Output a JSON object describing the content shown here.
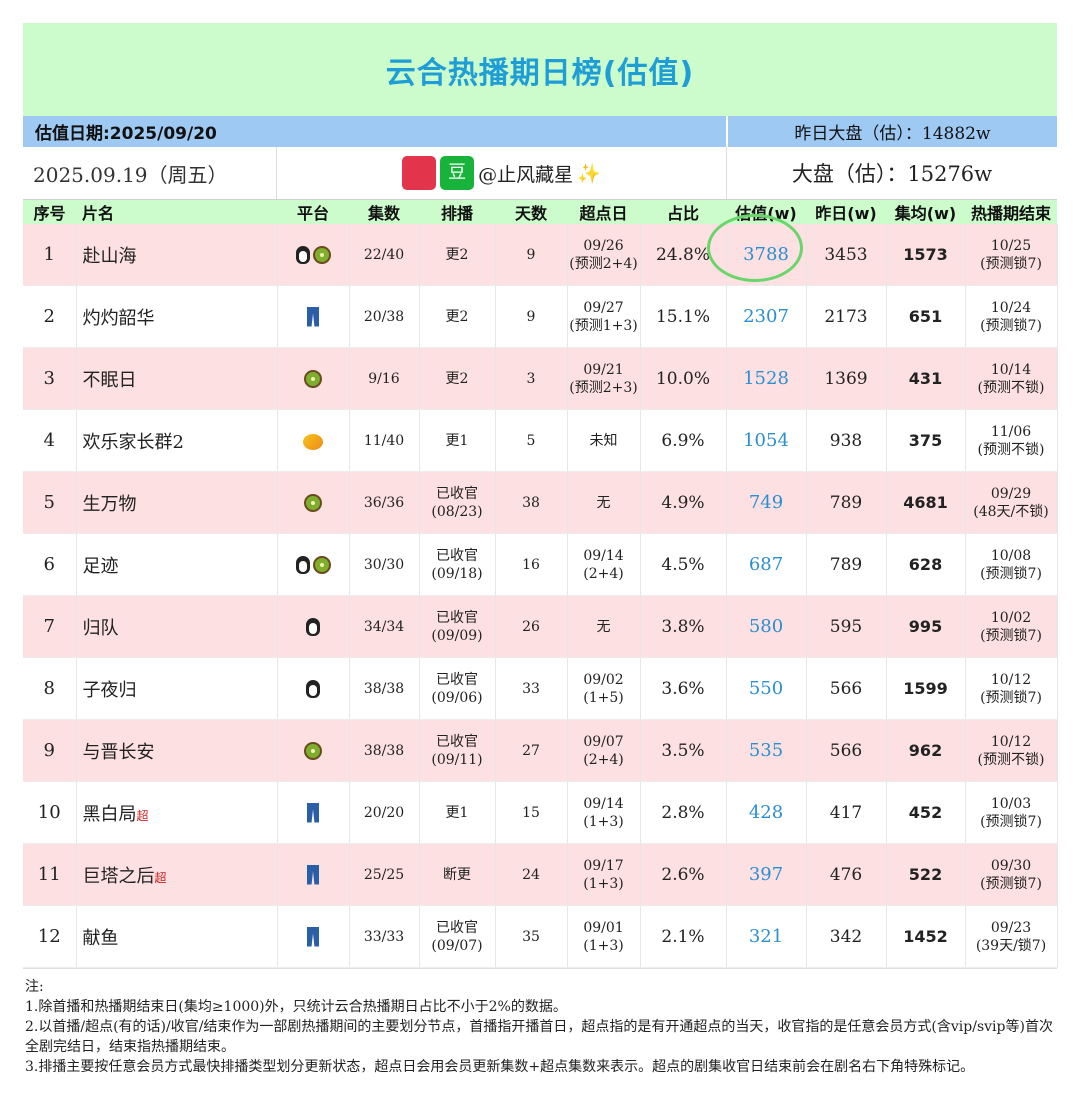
{
  "title": "云合热播期日榜(估值)",
  "valuation_date": "估值日期:2025/09/20",
  "yesterday_market": "昨日大盘（估）：14882w",
  "broadcast_date": "2025.09.19（周五）",
  "source_badge_text": "豆",
  "source_handle": "@止风藏星",
  "sparkle": "✨",
  "market_estimate": "大盘（估）：15276w",
  "headers": [
    "序号",
    "片名",
    "平台",
    "集数",
    "排播",
    "天数",
    "超点日",
    "占比",
    "估值(w)",
    "昨日(w)",
    "集均(w)",
    "热播期结束"
  ],
  "rows": [
    {
      "rank": "1",
      "name": "赴山海",
      "super": "",
      "platforms": [
        "penguin",
        "kiwi"
      ],
      "episodes": "22/40",
      "schedule_1": "更2",
      "schedule_2": "",
      "days": "9",
      "point_1": "09/26",
      "point_2": "(预测2+4)",
      "ratio": "24.8%",
      "estimate": "3788",
      "yesterday": "3453",
      "avg": "1573",
      "end_1": "10/25",
      "end_2": "(预测锁7)"
    },
    {
      "rank": "2",
      "name": "灼灼韶华",
      "super": "",
      "platforms": [
        "jeans"
      ],
      "episodes": "20/38",
      "schedule_1": "更2",
      "schedule_2": "",
      "days": "9",
      "point_1": "09/27",
      "point_2": "(预测1+3)",
      "ratio": "15.1%",
      "estimate": "2307",
      "yesterday": "2173",
      "avg": "651",
      "end_1": "10/24",
      "end_2": "(预测锁7)"
    },
    {
      "rank": "3",
      "name": "不眠日",
      "super": "",
      "platforms": [
        "kiwi"
      ],
      "episodes": "9/16",
      "schedule_1": "更2",
      "schedule_2": "",
      "days": "3",
      "point_1": "09/21",
      "point_2": "(预测2+3)",
      "ratio": "10.0%",
      "estimate": "1528",
      "yesterday": "1369",
      "avg": "431",
      "end_1": "10/14",
      "end_2": "(预测不锁)"
    },
    {
      "rank": "4",
      "name": "欢乐家长群2",
      "super": "",
      "platforms": [
        "mango"
      ],
      "episodes": "11/40",
      "schedule_1": "更1",
      "schedule_2": "",
      "days": "5",
      "point_1": "未知",
      "point_2": "",
      "ratio": "6.9%",
      "estimate": "1054",
      "yesterday": "938",
      "avg": "375",
      "end_1": "11/06",
      "end_2": "(预测不锁)"
    },
    {
      "rank": "5",
      "name": "生万物",
      "super": "",
      "platforms": [
        "kiwi"
      ],
      "episodes": "36/36",
      "schedule_1": "已收官",
      "schedule_2": "(08/23)",
      "days": "38",
      "point_1": "无",
      "point_2": "",
      "ratio": "4.9%",
      "estimate": "749",
      "yesterday": "789",
      "avg": "4681",
      "end_1": "09/29",
      "end_2": "(48天/不锁)"
    },
    {
      "rank": "6",
      "name": "足迹",
      "super": "",
      "platforms": [
        "penguin",
        "kiwi"
      ],
      "episodes": "30/30",
      "schedule_1": "已收官",
      "schedule_2": "(09/18)",
      "days": "16",
      "point_1": "09/14",
      "point_2": "(2+4)",
      "ratio": "4.5%",
      "estimate": "687",
      "yesterday": "789",
      "avg": "628",
      "end_1": "10/08",
      "end_2": "(预测锁7)"
    },
    {
      "rank": "7",
      "name": "归队",
      "super": "",
      "platforms": [
        "penguin"
      ],
      "episodes": "34/34",
      "schedule_1": "已收官",
      "schedule_2": "(09/09)",
      "days": "26",
      "point_1": "无",
      "point_2": "",
      "ratio": "3.8%",
      "estimate": "580",
      "yesterday": "595",
      "avg": "995",
      "end_1": "10/02",
      "end_2": "(预测锁7)"
    },
    {
      "rank": "8",
      "name": "子夜归",
      "super": "",
      "platforms": [
        "penguin"
      ],
      "episodes": "38/38",
      "schedule_1": "已收官",
      "schedule_2": "(09/06)",
      "days": "33",
      "point_1": "09/02",
      "point_2": "(1+5)",
      "ratio": "3.6%",
      "estimate": "550",
      "yesterday": "566",
      "avg": "1599",
      "end_1": "10/12",
      "end_2": "(预测锁7)"
    },
    {
      "rank": "9",
      "name": "与晋长安",
      "super": "",
      "platforms": [
        "kiwi"
      ],
      "episodes": "38/38",
      "schedule_1": "已收官",
      "schedule_2": "(09/11)",
      "days": "27",
      "point_1": "09/07",
      "point_2": "(2+4)",
      "ratio": "3.5%",
      "estimate": "535",
      "yesterday": "566",
      "avg": "962",
      "end_1": "10/12",
      "end_2": "(预测不锁)"
    },
    {
      "rank": "10",
      "name": "黑白局",
      "super": "超",
      "platforms": [
        "jeans"
      ],
      "episodes": "20/20",
      "schedule_1": "更1",
      "schedule_2": "",
      "days": "15",
      "point_1": "09/14",
      "point_2": "(1+3)",
      "ratio": "2.8%",
      "estimate": "428",
      "yesterday": "417",
      "avg": "452",
      "end_1": "10/03",
      "end_2": "(预测锁7)"
    },
    {
      "rank": "11",
      "name": "巨塔之后",
      "super": "超",
      "platforms": [
        "jeans"
      ],
      "episodes": "25/25",
      "schedule_1": "断更",
      "schedule_2": "",
      "days": "24",
      "point_1": "09/17",
      "point_2": "(1+3)",
      "ratio": "2.6%",
      "estimate": "397",
      "yesterday": "476",
      "avg": "522",
      "end_1": "09/30",
      "end_2": "(预测锁7)"
    },
    {
      "rank": "12",
      "name": "献鱼",
      "super": "",
      "platforms": [
        "jeans"
      ],
      "episodes": "33/33",
      "schedule_1": "已收官",
      "schedule_2": "(09/07)",
      "days": "35",
      "point_1": "09/01",
      "point_2": "(1+3)",
      "ratio": "2.1%",
      "estimate": "321",
      "yesterday": "342",
      "avg": "1452",
      "end_1": "09/23",
      "end_2": "(39天/锁7)"
    }
  ],
  "notes": [
    "注:",
    "1.除首播和热播期结束日(集均≥1000)外，只统计云合热播期日占比不小于2%的数据。",
    "2.以首播/超点(有的话)/收官/结束作为一部剧热播期间的主要划分节点，首播指开播首日，超点指的是有开通超点的当天，收官指的是任意会员方式(含vip/svip等)首次全剧完结日，结束指热播期结束。",
    "3.排播主要按任意会员方式最快排播类型划分更新状态，超点日会用会员更新集数+超点集数来表示。超点的剧集收官日结束前会在剧名右下角特殊标记。"
  ],
  "colors": {
    "title_bg": "#ccfccc",
    "title_text": "#1f9ed6",
    "info_bg": "#9ec9f3",
    "row_pink": "#fde0e1",
    "estimate_text": "#2b8fd0",
    "super_mark": "#d21c1c",
    "highlight_circle": "#6ad66a"
  }
}
